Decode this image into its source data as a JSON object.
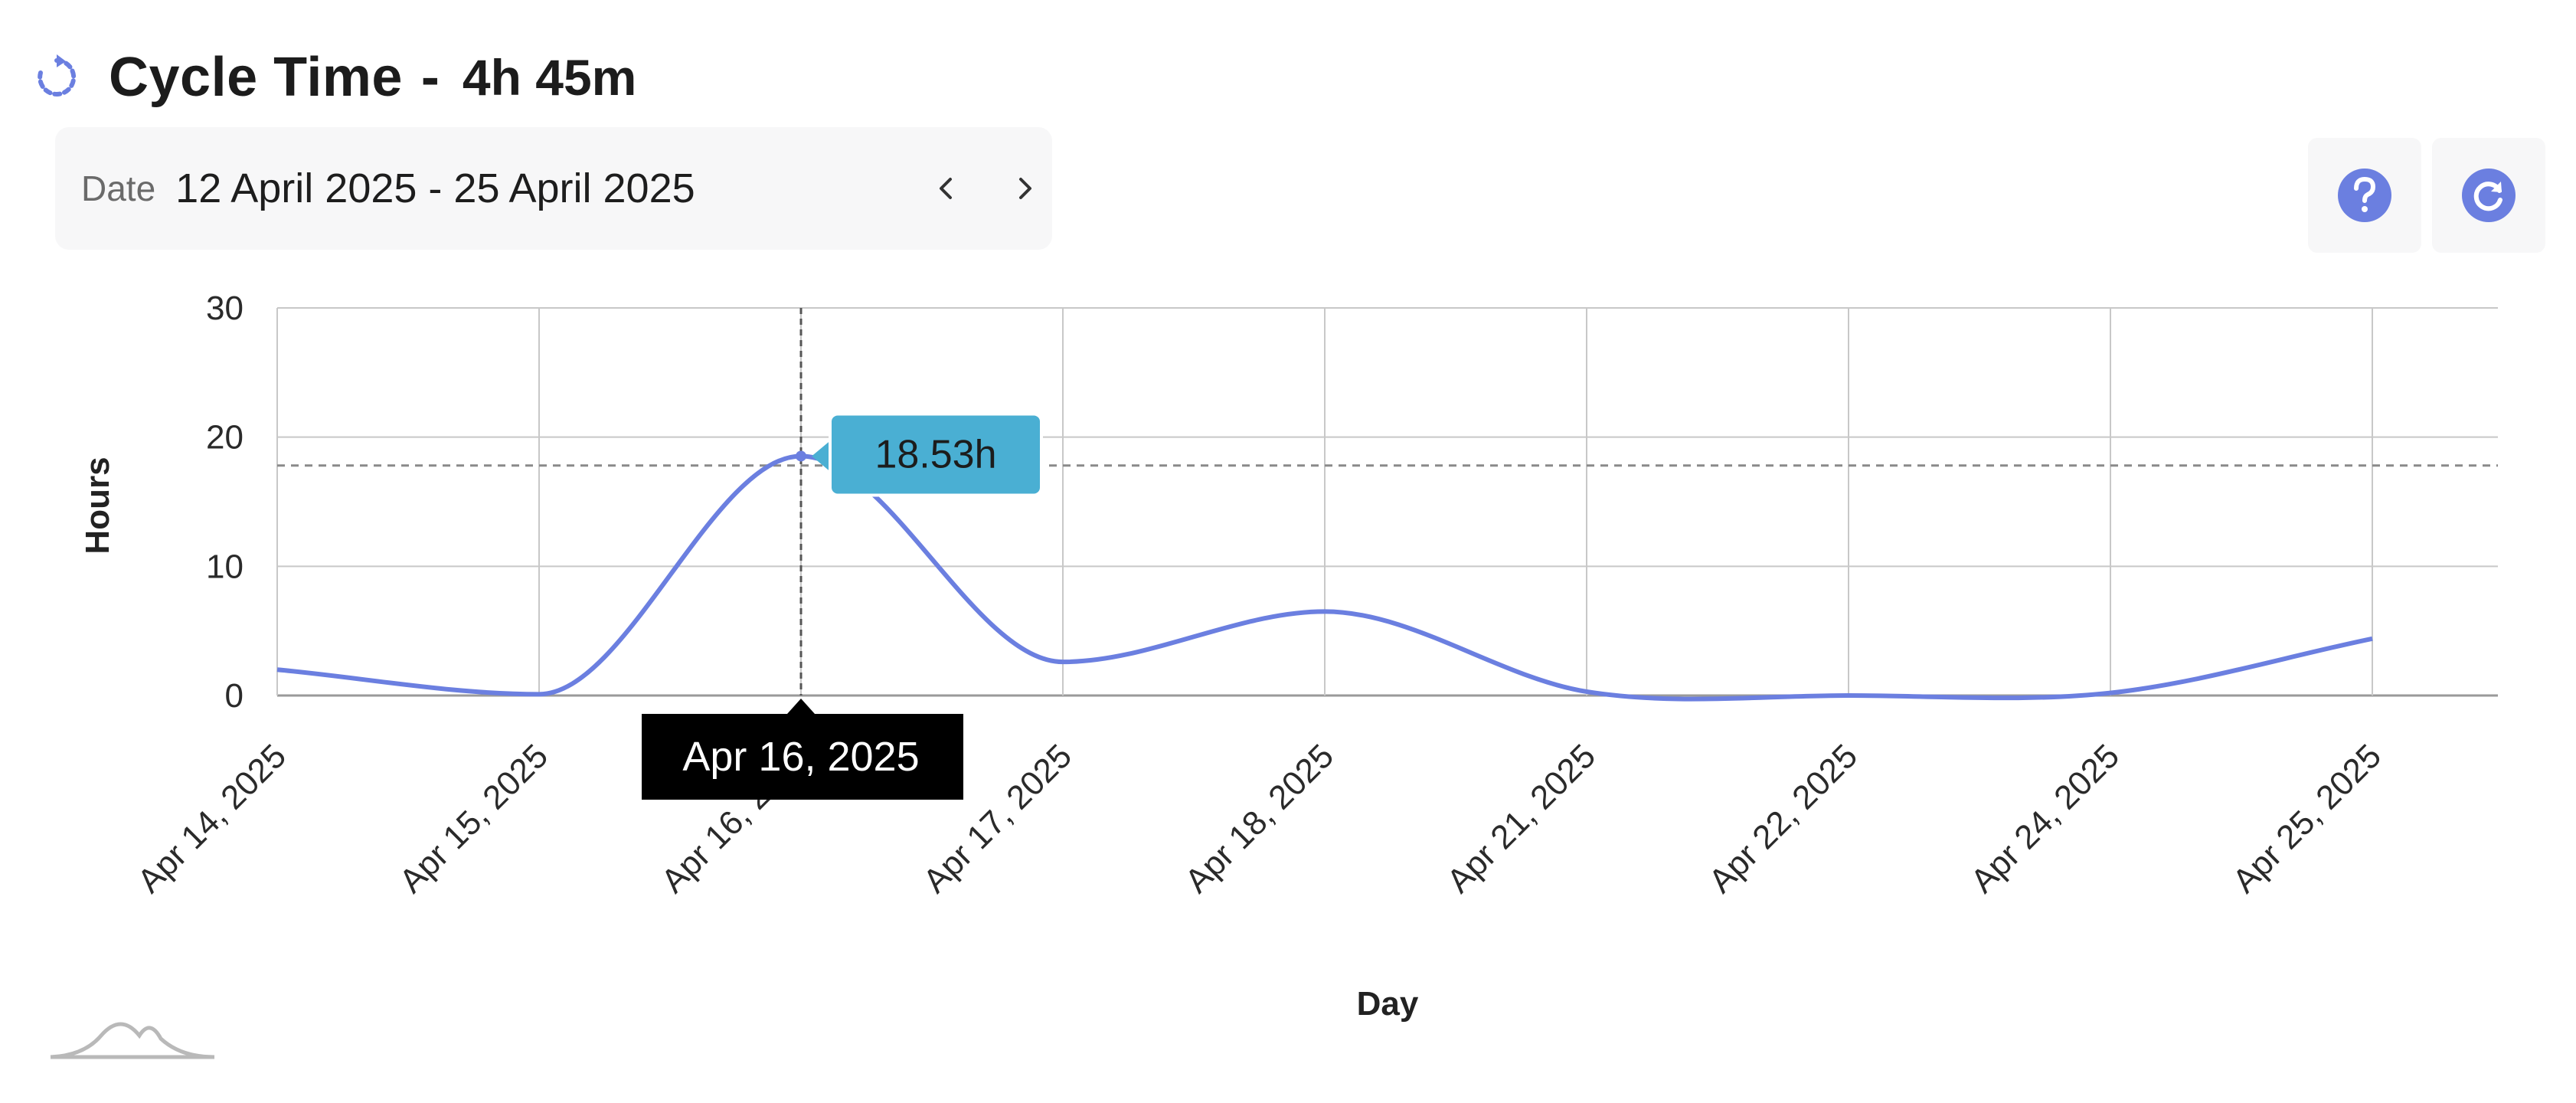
{
  "header": {
    "title": "Cycle Time",
    "separator": "-",
    "value": "4h 45m",
    "icon": "cycle-icon"
  },
  "date_filter": {
    "label": "Date",
    "range": "12 April 2025 - 25 April 2025",
    "prev_icon": "chevron-left-icon",
    "next_icon": "chevron-right-icon"
  },
  "toolbar": {
    "help_icon": "question-circle-icon",
    "refresh_icon": "refresh-icon"
  },
  "colors": {
    "line": "#6b7fe0",
    "accent": "#6b7fe0",
    "tooltip_bg": "#4aafd3",
    "axis_tooltip_bg": "#000000",
    "grid": "#c8c8c8"
  },
  "chart_data": {
    "type": "line",
    "xlabel": "Day",
    "ylabel": "Hours",
    "ylim": [
      0,
      30
    ],
    "yticks": [
      0,
      10,
      20,
      30
    ],
    "categories": [
      "Apr 14, 2025",
      "Apr 15, 2025",
      "Apr 16, 2025",
      "Apr 17, 2025",
      "Apr 18, 2025",
      "Apr 21, 2025",
      "Apr 22, 2025",
      "Apr 24, 2025",
      "Apr 25, 2025"
    ],
    "series": [
      {
        "values": [
          2.0,
          0.1,
          18.53,
          2.6,
          6.5,
          0.3,
          0.0,
          0.2,
          4.4
        ]
      }
    ],
    "average_line": 17.8,
    "grid": true,
    "smooth": true,
    "tooltip": {
      "category": "Apr 16, 2025",
      "value_label": "18.53h"
    }
  }
}
